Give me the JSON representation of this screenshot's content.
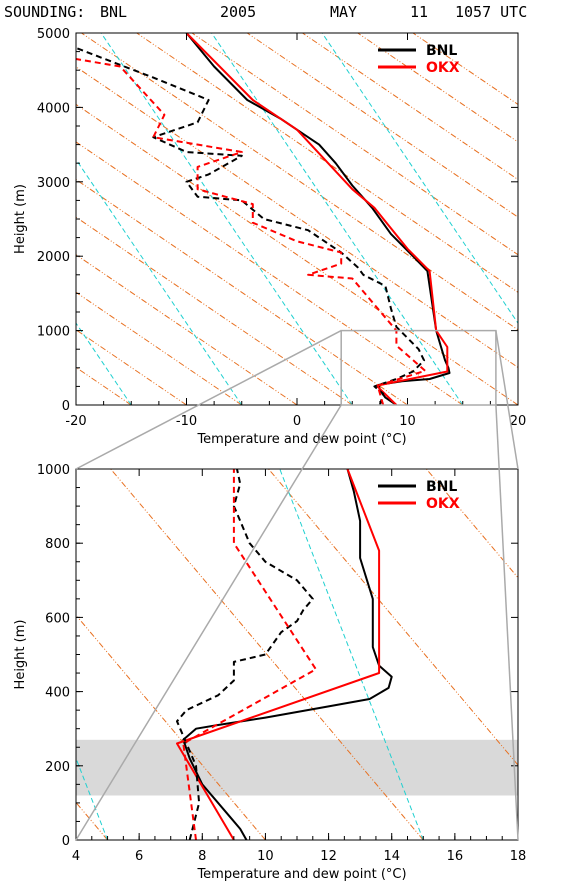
{
  "header": {
    "label": "SOUNDING:",
    "station": "BNL",
    "year": "2005",
    "month": "MAY",
    "day": "11",
    "time": "1057 UTC"
  },
  "colors": {
    "bnl": "#000000",
    "okx": "#ff0000",
    "dry_adiabat": "#e87020",
    "moist_adiabat": "#20d0d0",
    "highlight_band": "#d9d9d9",
    "zoom_lines": "#aaaaaa"
  },
  "chart_data": [
    {
      "type": "line",
      "panel": "top",
      "xlabel": "Temperature and dew point (°C)",
      "ylabel": "Height (m)",
      "xlim": [
        -20,
        20
      ],
      "ylim": [
        0,
        5000
      ],
      "xticks": [
        "-20",
        "-10",
        "0",
        "10",
        "20"
      ],
      "yticks": [
        "0",
        "1000",
        "2000",
        "3000",
        "4000",
        "5000"
      ],
      "legend": {
        "position": "top-right",
        "entries": [
          "BNL",
          "OKX"
        ]
      },
      "background_lines": [
        {
          "name": "dry-adiabats",
          "color": "#e87020",
          "slope_m_per_degC": -101,
          "intercepts_degC": [
            -15,
            -10,
            -5,
            0,
            5,
            10,
            15,
            20,
            25,
            30,
            35,
            40,
            45,
            50,
            55,
            60
          ]
        },
        {
          "name": "moist-adiabats",
          "color": "#20d0d0",
          "slope_m_per_degC": -220,
          "intercepts_degC": [
            -15,
            -5,
            5,
            15,
            25
          ]
        }
      ],
      "series": [
        {
          "name": "BNL",
          "kind": "temperature",
          "color": "#000000",
          "dash": false,
          "x": [
            9.0,
            8.0,
            7.5,
            7.4,
            9.5,
            12.0,
            13.8,
            13.7,
            13.4,
            13.0,
            12.6,
            12.4,
            12.1,
            11.8,
            10.5,
            8.5,
            6.8,
            5.0,
            3.5,
            2.0,
            0.5,
            -1.5,
            -4.5,
            -7.5,
            -10.0
          ],
          "y": [
            0,
            100,
            200,
            270,
            320,
            350,
            430,
            500,
            600,
            800,
            1000,
            1200,
            1500,
            1800,
            2000,
            2300,
            2650,
            2950,
            3250,
            3500,
            3650,
            3850,
            4100,
            4550,
            5000
          ]
        },
        {
          "name": "OKX",
          "kind": "temperature",
          "color": "#ff0000",
          "dash": false,
          "x": [
            9.0,
            7.2,
            13.6,
            13.6,
            12.6,
            12.0,
            10.0,
            7.0,
            5.0,
            0.0,
            -4.0,
            -10.0
          ],
          "y": [
            0,
            260,
            450,
            780,
            1000,
            1800,
            2100,
            2650,
            2900,
            3700,
            4100,
            5000
          ]
        },
        {
          "name": "BNL",
          "kind": "dew point",
          "color": "#000000",
          "dash": true,
          "x": [
            7.5,
            7.8,
            7.0,
            9.0,
            10.5,
            11.5,
            11.0,
            10.0,
            9.0,
            8.5,
            8.0,
            6.0,
            5.5,
            4.0,
            1.0,
            -3.0,
            -5.0,
            -9.0,
            -10.0,
            -8.0,
            -5.0,
            -10.0,
            -13.0,
            -9.0,
            -8.0,
            -13.0,
            -16.5,
            -20.0
          ],
          "y": [
            0,
            150,
            250,
            350,
            450,
            600,
            750,
            900,
            1050,
            1300,
            1600,
            1750,
            1850,
            2050,
            2350,
            2500,
            2750,
            2800,
            3000,
            3100,
            3350,
            3400,
            3600,
            3800,
            4100,
            4400,
            4600,
            4800
          ]
        },
        {
          "name": "OKX",
          "kind": "dew point",
          "color": "#ff0000",
          "dash": true,
          "x": [
            7.8,
            7.3,
            11.6,
            9.0,
            9.0,
            5.0,
            1.0,
            4.0,
            4.0,
            0.0,
            -4.0,
            -4.0,
            -9.0,
            -9.0,
            -5.0,
            -13.0,
            -12.0,
            -16.0,
            -20.0
          ],
          "y": [
            0,
            260,
            460,
            800,
            1000,
            1700,
            1750,
            1900,
            2050,
            2200,
            2450,
            2700,
            2900,
            3200,
            3400,
            3600,
            3900,
            4550,
            4650
          ]
        }
      ]
    },
    {
      "type": "line",
      "panel": "bottom",
      "xlabel": "Temperature and dew point (°C)",
      "ylabel": "Height (m)",
      "xlim": [
        4,
        18
      ],
      "ylim": [
        0,
        1000
      ],
      "xticks": [
        "4",
        "6",
        "8",
        "10",
        "12",
        "14",
        "16",
        "18"
      ],
      "yticks": [
        "0",
        "200",
        "400",
        "600",
        "800",
        "1000"
      ],
      "legend": {
        "position": "top-right",
        "entries": [
          "BNL",
          "OKX"
        ]
      },
      "shaded_band": {
        "y": [
          120,
          270
        ],
        "color": "#d9d9d9"
      },
      "background_lines": [
        {
          "name": "dry-adiabats",
          "color": "#e87020",
          "slope_m_per_degC": -101,
          "intercepts_degC": [
            -5,
            0,
            5,
            10,
            15,
            20,
            25
          ]
        },
        {
          "name": "moist-adiabats",
          "color": "#20d0d0",
          "slope_m_per_degC": -220,
          "intercepts_degC": [
            5,
            15,
            25
          ]
        }
      ],
      "series": [
        {
          "name": "BNL",
          "kind": "temperature",
          "color": "#000000",
          "dash": false,
          "x": [
            9.4,
            9.2,
            8.9,
            8.0,
            7.6,
            7.4,
            7.8,
            8.5,
            10.0,
            12.0,
            13.3,
            13.9,
            14.0,
            13.6,
            13.4,
            13.4,
            13.0,
            13.0,
            12.8,
            12.6
          ],
          "y": [
            0,
            30,
            60,
            150,
            220,
            270,
            300,
            310,
            330,
            360,
            380,
            410,
            440,
            470,
            520,
            650,
            760,
            860,
            940,
            1000
          ]
        },
        {
          "name": "OKX",
          "kind": "temperature",
          "color": "#ff0000",
          "dash": false,
          "x": [
            9.0,
            7.2,
            13.6,
            13.6,
            12.6
          ],
          "y": [
            0,
            260,
            450,
            780,
            1000
          ]
        },
        {
          "name": "BNL",
          "kind": "dew point",
          "color": "#000000",
          "dash": true,
          "x": [
            7.6,
            7.9,
            7.8,
            7.2,
            7.5,
            8.5,
            9.0,
            9.0,
            10.0,
            10.5,
            11.0,
            11.2,
            11.5,
            11.0,
            10.0,
            9.5,
            9.2,
            9.0,
            9.2,
            9.1
          ],
          "y": [
            0,
            100,
            200,
            320,
            350,
            390,
            430,
            480,
            500,
            560,
            590,
            620,
            650,
            700,
            750,
            800,
            860,
            900,
            960,
            1000
          ]
        },
        {
          "name": "OKX",
          "kind": "dew point",
          "color": "#ff0000",
          "dash": true,
          "x": [
            7.8,
            7.4,
            11.6,
            9.0,
            9.0
          ],
          "y": [
            0,
            260,
            460,
            800,
            1000
          ]
        }
      ]
    }
  ]
}
